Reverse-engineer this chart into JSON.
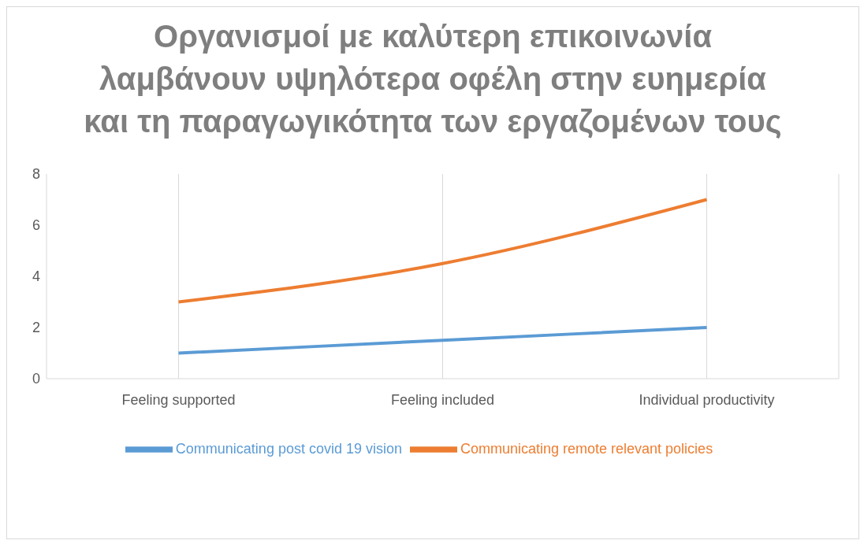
{
  "chart_data": {
    "type": "line",
    "title": "Οργανισμοί με καλύτερη επικοινωνία λαμβάνουν υψηλότερα οφέλη στην ευημερία και τη παραγωγικότητα  των εργαζομένων τους",
    "categories": [
      "Feeling supported",
      "Feeling included",
      "Individual productivity"
    ],
    "series": [
      {
        "name": "Communicating post covid 19 vision",
        "color": "#5b9bd5",
        "values": [
          1,
          1.5,
          2
        ]
      },
      {
        "name": "Communicating remote relevant policies",
        "color": "#ed7d31",
        "values": [
          3,
          4.5,
          7
        ]
      }
    ],
    "ylim": [
      0,
      8
    ],
    "yticks": [
      0,
      2,
      4,
      6,
      8
    ],
    "grid": "x",
    "legend": "bottom",
    "marker": "none",
    "line_style": "solid"
  }
}
